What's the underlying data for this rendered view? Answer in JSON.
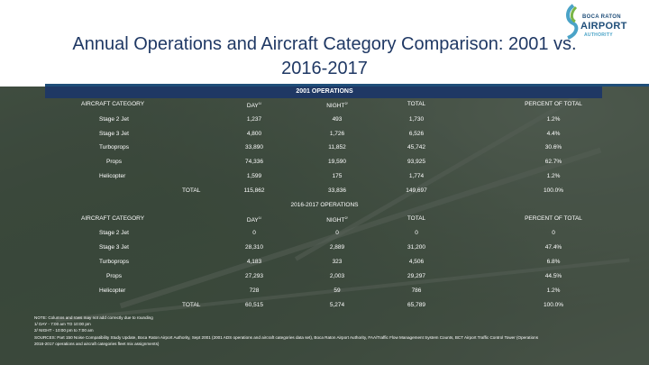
{
  "title_line1": "Annual Operations and Aircraft Category Comparison: 2001 vs.",
  "title_line2": "2016-2017",
  "logo": {
    "line1": "BOCA RATON",
    "line2": "AIRPORT",
    "line3": "AUTHORITY"
  },
  "colors": {
    "navy": "#1f3864",
    "accent": "#1f4e79",
    "teal": "#4aa3c7",
    "green": "#7ab648"
  },
  "columns": {
    "category": "AIRCRAFT CATEGORY",
    "day": "DAY",
    "night": "NIGHT",
    "total": "TOTAL",
    "percent": "PERCENT OF TOTAL",
    "day_sup": "1/",
    "night_sup": "2/"
  },
  "section2001": {
    "title": "2001 OPERATIONS",
    "rows": [
      {
        "category": "Stage 2 Jet",
        "day": "1,237",
        "night": "493",
        "total": "1,730",
        "percent": "1.2%"
      },
      {
        "category": "Stage 3 Jet",
        "day": "4,800",
        "night": "1,726",
        "total": "6,526",
        "percent": "4.4%"
      },
      {
        "category": "Turboprops",
        "day": "33,890",
        "night": "11,852",
        "total": "45,742",
        "percent": "30.6%"
      },
      {
        "category": "Props",
        "day": "74,336",
        "night": "19,590",
        "total": "93,925",
        "percent": "62.7%"
      },
      {
        "category": "Helicopter",
        "day": "1,599",
        "night": "175",
        "total": "1,774",
        "percent": "1.2%"
      }
    ],
    "total": {
      "label": "TOTAL",
      "day": "115,862",
      "night": "33,836",
      "total": "149,697",
      "percent": "100.0%"
    }
  },
  "section2016": {
    "title": "2016-2017 OPERATIONS",
    "rows": [
      {
        "category": "Stage 2 Jet",
        "day": "0",
        "night": "0",
        "total": "0",
        "percent": "0"
      },
      {
        "category": "Stage 3 Jet",
        "day": "28,310",
        "night": "2,889",
        "total": "31,200",
        "percent": "47.4%"
      },
      {
        "category": "Turboprops",
        "day": "4,183",
        "night": "323",
        "total": "4,506",
        "percent": "6.8%"
      },
      {
        "category": "Props",
        "day": "27,293",
        "night": "2,003",
        "total": "29,297",
        "percent": "44.5%"
      },
      {
        "category": "Helicopter",
        "day": "728",
        "night": "59",
        "total": "786",
        "percent": "1.2%"
      }
    ],
    "total": {
      "label": "TOTAL",
      "day": "60,515",
      "night": "5,274",
      "total": "65,789",
      "percent": "100.0%"
    }
  },
  "notes": [
    "NOTE: Columns and rows may not add correctly due to rounding",
    "1/  DAY - 7:00 am TO 10:00 pm",
    "2/  NIGHT - 10:00 pm to 7:00 am",
    "SOURCES: Part 150 Noise Compatibility Study Update, Boca Raton Airport Authority, Sept 2001 (2001 ADS operations and aircraft categories data set), Boca Raton Airport Authority, FAA/Traffic Flow Management System Counts, BCT Airport Traffic Control Tower (Operations",
    "2016-2017 operations and aircraft categories fleet mix assignments)"
  ]
}
